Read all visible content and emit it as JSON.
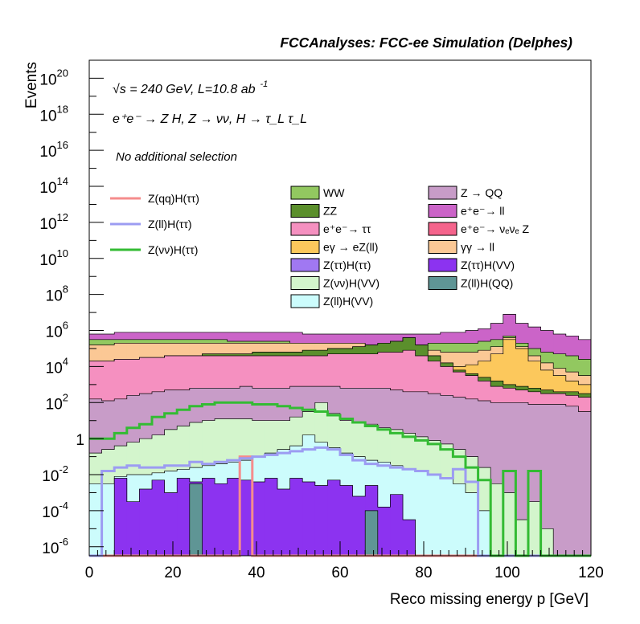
{
  "chart_data": {
    "type": "area",
    "header": "FCCAnalyses: FCC-ee Simulation (Delphes)",
    "annotations": {
      "energy_line": "√s = 240 GeV, L=10.8 ab",
      "energy_exp": "-1",
      "process_line": "e⁺e⁻ → Z H, Z → νν, H → τ_L τ_L",
      "selection": "No additional selection"
    },
    "xlabel": "Reco missing energy p [GeV]",
    "ylabel": "Events",
    "xlim": [
      0,
      120
    ],
    "yscale": "log",
    "ylim_exponents": [
      -6.5,
      21
    ],
    "xticks": [
      "0",
      "20",
      "40",
      "60",
      "80",
      "100",
      "120"
    ],
    "yticks": [
      {
        "base": "10",
        "exp": "20",
        "e": 20
      },
      {
        "base": "10",
        "exp": "18",
        "e": 18
      },
      {
        "base": "10",
        "exp": "16",
        "e": 16
      },
      {
        "base": "10",
        "exp": "14",
        "e": 14
      },
      {
        "base": "10",
        "exp": "12",
        "e": 12
      },
      {
        "base": "10",
        "exp": "10",
        "e": 10
      },
      {
        "base": "10",
        "exp": "8",
        "e": 8
      },
      {
        "base": "10",
        "exp": "6",
        "e": 6
      },
      {
        "base": "10",
        "exp": "4",
        "e": 4
      },
      {
        "base": "10",
        "exp": "2",
        "e": 2
      },
      {
        "base": "1",
        "exp": "",
        "e": 0
      },
      {
        "base": "10",
        "exp": "-2",
        "e": -2
      },
      {
        "base": "10",
        "exp": "-4",
        "e": -4
      },
      {
        "base": "10",
        "exp": "-6",
        "e": -6
      }
    ],
    "legend_signal": [
      "Z(qq)H(ττ)",
      "Z(ll)H(ττ)",
      "Z(νν)H(ττ)"
    ],
    "legend_bkg_left": [
      "WW",
      "ZZ",
      "e⁺e⁻→ ττ",
      "eγ → eZ(ll)",
      "Z(ττ)H(ττ)",
      "Z(νν)H(VV)",
      "Z(ll)H(VV)"
    ],
    "legend_bkg_right": [
      "Z → QQ",
      "e⁺e⁻→ ll",
      "e⁺e⁻→ νₑνₑ Z",
      "γγ → ll",
      "Z(ττ)H(VV)",
      "Z(ll)H(QQ)"
    ],
    "colors": {
      "ww": "#92c860",
      "zz": "#5b8f2c",
      "eett": "#f590c0",
      "egamma": "#fcc85c",
      "zttHtt": "#a078f2",
      "znnHvv": "#d3f5cc",
      "zllHvv": "#ccfcfc",
      "zqq": "#c89cc8",
      "eell": "#cb64c8",
      "eennz": "#f5648c",
      "gammagamma": "#fbc895",
      "zttHvv": "#8c33f0",
      "zllHqq": "#5f9595",
      "sig_qq": "#f58c8c",
      "sig_ll": "#9c9cf2",
      "sig_nn": "#33bb33"
    },
    "stack_log10_top": {
      "znnHvv_plus_below": [
        -0.8,
        -0.6,
        -0.4,
        -0.2,
        0,
        0.2,
        0.5,
        0.7,
        0.9,
        1,
        1.1,
        1.1,
        1.1,
        1,
        1,
        1,
        1.2,
        1.5,
        2,
        1.4,
        1,
        0.9,
        0.8,
        0.6,
        0.5,
        0.3,
        0.1,
        -0.1,
        -0.3,
        -0.6,
        -1,
        -1.6,
        -2.5,
        -3,
        -4.5,
        -3.5,
        -5,
        -6.5,
        -6.5,
        -6.5
      ],
      "zqq_plus_below": [
        2.2,
        2.1,
        2.2,
        2.4,
        2.5,
        2.6,
        2.7,
        2.7,
        2.8,
        2.8,
        2.8,
        2.8,
        2.9,
        2.8,
        2.8,
        2.8,
        2.9,
        2.9,
        2.9,
        2.9,
        2.8,
        2.8,
        2.8,
        2.8,
        2.7,
        2.6,
        2.6,
        2.5,
        2.4,
        2.3,
        2.2,
        2.1,
        2.0,
        2.0,
        2.0,
        1.9,
        1.9,
        1.9,
        1.8,
        1.5
      ],
      "eett_plus_below": [
        4.3,
        4.3,
        4.4,
        4.4,
        4.5,
        4.5,
        4.6,
        4.6,
        4.6,
        4.6,
        4.6,
        4.6,
        4.6,
        4.6,
        4.6,
        4.6,
        4.6,
        4.6,
        4.6,
        4.7,
        4.7,
        4.7,
        4.7,
        4.8,
        4.8,
        4.9,
        4.6,
        4.3,
        4.0,
        3.7,
        3.5,
        3.2,
        2.9,
        2.8,
        2.7,
        2.6,
        2.5,
        2.5,
        2.4,
        2.3
      ],
      "zz_plus_below": [
        4.3,
        4.3,
        4.4,
        4.4,
        4.5,
        4.5,
        4.6,
        4.6,
        4.6,
        4.7,
        4.7,
        4.7,
        4.7,
        4.8,
        4.8,
        4.8,
        4.8,
        4.9,
        4.9,
        5.0,
        5.0,
        5.1,
        5.2,
        5.3,
        5.4,
        5.6,
        5.2,
        4.6,
        4.2,
        3.8,
        3.6,
        3.4,
        3.2,
        3.0,
        2.9,
        2.8,
        2.7,
        2.6,
        2.6,
        2.5
      ],
      "egamma_plus_below": [
        4.3,
        4.3,
        4.4,
        4.4,
        4.5,
        4.5,
        4.6,
        4.6,
        4.6,
        4.7,
        4.7,
        4.7,
        4.7,
        4.8,
        4.8,
        4.8,
        4.8,
        4.9,
        4.9,
        5.0,
        5.0,
        5.1,
        5.2,
        5.3,
        5.4,
        5.6,
        5.2,
        4.6,
        4.2,
        4.0,
        4.1,
        4.3,
        4.7,
        5.5,
        5.0,
        4.3,
        3.8,
        3.5,
        3.2,
        3.0
      ],
      "gammagamma_plus_below": [
        5.2,
        5.2,
        5.3,
        5.3,
        5.3,
        5.3,
        5.3,
        5.3,
        5.3,
        5.3,
        5.3,
        5.3,
        5.3,
        5.3,
        5.3,
        5.3,
        5.3,
        5.3,
        5.3,
        5.3,
        5.3,
        5.3,
        5.2,
        5.2,
        5.2,
        5.1,
        5.0,
        4.9,
        4.8,
        4.8,
        4.8,
        4.9,
        5.1,
        5.6,
        5.1,
        4.6,
        4.2,
        3.9,
        3.7,
        3.5
      ],
      "ww_plus_below": [
        5.5,
        5.5,
        5.5,
        5.5,
        5.5,
        5.5,
        5.5,
        5.5,
        5.5,
        5.5,
        5.5,
        5.4,
        5.4,
        5.4,
        5.4,
        5.4,
        5.3,
        5.3,
        5.3,
        5.2,
        5.2,
        5.2,
        5.2,
        5.2,
        5.2,
        5.2,
        5.2,
        5.3,
        5.3,
        5.3,
        5.3,
        5.4,
        5.5,
        5.7,
        5.3,
        5.0,
        4.8,
        4.7,
        4.6,
        4.4
      ],
      "eell_plus_below": [
        5.8,
        5.8,
        5.9,
        5.9,
        5.9,
        5.9,
        5.9,
        5.9,
        5.9,
        5.9,
        5.9,
        5.9,
        5.9,
        5.9,
        5.9,
        5.9,
        5.9,
        5.8,
        5.8,
        5.8,
        5.8,
        5.8,
        5.8,
        5.8,
        5.8,
        5.8,
        5.8,
        5.8,
        5.9,
        5.9,
        6.0,
        6.1,
        6.4,
        6.9,
        6.4,
        6.2,
        6.0,
        5.8,
        5.7,
        5.5
      ],
      "zllHvv_top": [
        -2.5,
        -2.5,
        -2.1,
        -2,
        -2,
        -1.9,
        -1.8,
        -1.7,
        -1.6,
        -1.5,
        -1.4,
        -1.3,
        -1.2,
        -1.0,
        -0.8,
        -0.6,
        -0.4,
        0.2,
        -0.2,
        -0.5,
        -0.8,
        -1.0,
        -1.2,
        -1.3,
        -1.5,
        -1.7,
        -1.8,
        -2.0,
        -2.2,
        -2.5,
        -3,
        -4,
        -6.5,
        -6.5,
        -6.5,
        -6.5,
        -6.5,
        -6.5,
        -6.5,
        -6.5
      ],
      "zttHvv_top": [
        -6.5,
        -6.5,
        -2.2,
        -3.5,
        -2.8,
        -2.3,
        -3,
        -2.2,
        -2.4,
        -2.2,
        -2.5,
        -2.2,
        -2.3,
        -2.4,
        -2.2,
        -2.8,
        -2.2,
        -2.4,
        -2.6,
        -2.3,
        -2.6,
        -3.2,
        -2.6,
        -3.8,
        -3.1,
        -4.5,
        -6.5,
        -6.5,
        -6.5,
        -6.5,
        -6.5,
        -6.5,
        -6.5,
        -6.5,
        -6.5,
        -6.5,
        -6.5,
        -6.5,
        -6.5,
        -6.5
      ],
      "zllHqq_top": [
        -6.5,
        -6.5,
        -6.5,
        -6.5,
        -6.5,
        -6.5,
        -6.5,
        -6.5,
        -2.5,
        -6.5,
        -6.5,
        -6.5,
        -6.5,
        -6.5,
        -6.5,
        -6.5,
        -6.5,
        -6.5,
        -6.5,
        -6.5,
        -6.5,
        -6.5,
        -4,
        -6.5,
        -6.5,
        -6.5,
        -6.5,
        -6.5,
        -6.5,
        -6.5,
        -6.5,
        -6.5,
        -6.5,
        -6.5,
        -6.5,
        -6.5,
        -6.5,
        -6.5,
        -6.5,
        -6.5
      ]
    },
    "signal_log10": {
      "znn": [
        0,
        0,
        0.3,
        0.6,
        0.8,
        1.2,
        1.4,
        1.6,
        1.8,
        1.9,
        2.0,
        2.0,
        2.0,
        1.9,
        1.9,
        1.8,
        1.7,
        1.6,
        1.5,
        1.3,
        1.1,
        0.9,
        0.7,
        0.5,
        0.3,
        0.1,
        -0.1,
        -0.3,
        -0.6,
        -1.0,
        -1.6,
        -2.3,
        -6.5,
        -1.8,
        -6.5,
        -1.8,
        -6.5,
        -6.5,
        -6.5,
        -6.5
      ],
      "zll": [
        -6.5,
        -1.8,
        -1.6,
        -1.5,
        -1.6,
        -1.6,
        -1.5,
        -1.5,
        -1.3,
        -1.4,
        -1.3,
        -1.2,
        -1.1,
        -1.0,
        -0.9,
        -0.8,
        -0.7,
        -0.6,
        -0.5,
        -0.6,
        -0.9,
        -1.2,
        -1.4,
        -1.5,
        -1.6,
        -1.7,
        -1.8,
        -2.0,
        -2.2,
        -1.7,
        -2.4,
        -6.5,
        -6.5,
        -6.5,
        -6.5,
        -6.5,
        -6.5,
        -6.5,
        -6.5,
        -6.5
      ],
      "zqq": [
        -6.5,
        -6.5,
        -6.5,
        -6.5,
        -6.5,
        -6.5,
        -6.5,
        -6.5,
        -6.5,
        -6.5,
        -6.5,
        -6.5,
        -1.0,
        -6.5,
        -6.5,
        -6.5,
        -6.5,
        -6.5,
        -6.5,
        -6.5,
        -6.5,
        -6.5,
        -6.5,
        -6.5,
        -6.5,
        -6.5,
        -6.5,
        -6.5,
        -6.5,
        -6.5,
        -6.5,
        -6.5,
        -6.5,
        -6.5,
        -6.5,
        -6.5,
        -6.5,
        -6.5,
        -6.5,
        -6.5
      ]
    }
  }
}
